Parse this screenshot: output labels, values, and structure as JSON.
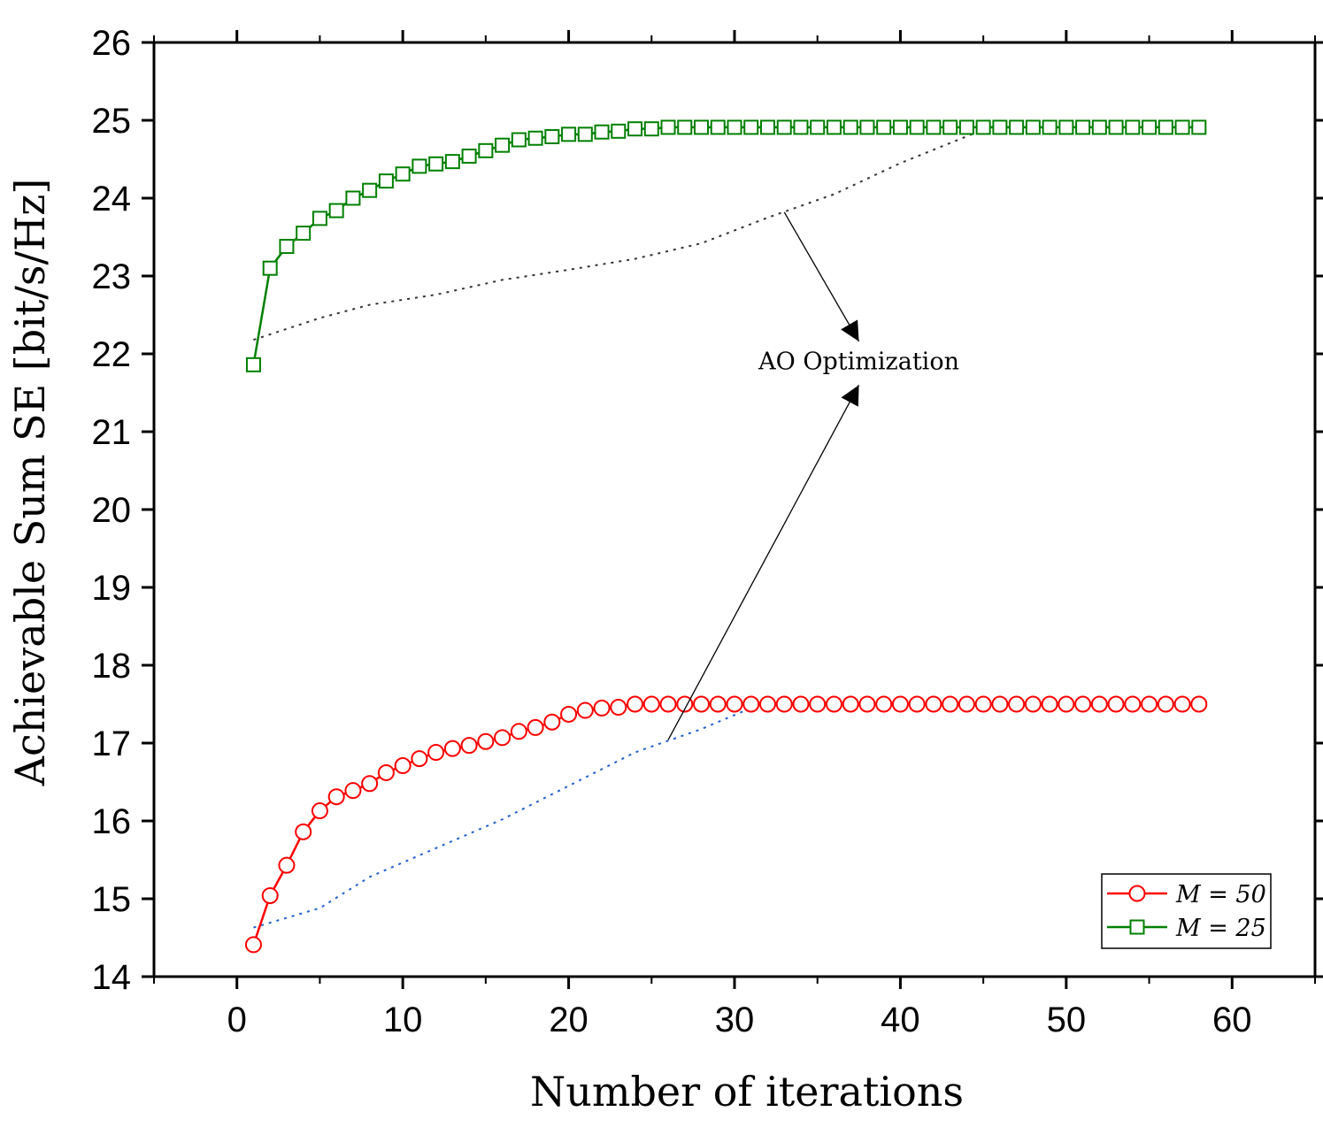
{
  "chart_data": {
    "type": "line",
    "title": "",
    "xlabel": "Number of iterations",
    "ylabel": "Achievable Sum SE [bit/s/Hz]",
    "xlim": [
      -5,
      65
    ],
    "ylim": [
      14,
      26
    ],
    "xticks": [
      0,
      10,
      20,
      30,
      40,
      50,
      60
    ],
    "yticks": [
      14,
      15,
      16,
      17,
      18,
      19,
      20,
      21,
      22,
      23,
      24,
      25,
      26
    ],
    "legend_position": "bottom-right",
    "series": [
      {
        "name": "M = 50",
        "label": "M = 50",
        "color": "#ff0000",
        "marker": "circle",
        "x": [
          1,
          2,
          3,
          4,
          5,
          6,
          7,
          8,
          9,
          10,
          11,
          12,
          13,
          14,
          15,
          16,
          17,
          18,
          19,
          20,
          21,
          22,
          23,
          24,
          25,
          26,
          27,
          28,
          29,
          30,
          31,
          32,
          33,
          34,
          35,
          36,
          37,
          38,
          39,
          40,
          41,
          42,
          43,
          44,
          45,
          46,
          47,
          48,
          49,
          50,
          51,
          52,
          53,
          54,
          55,
          56,
          57,
          58
        ],
        "values": [
          14.41,
          15.04,
          15.43,
          15.86,
          16.13,
          16.31,
          16.39,
          16.48,
          16.62,
          16.71,
          16.8,
          16.88,
          16.93,
          16.97,
          17.02,
          17.07,
          17.15,
          17.2,
          17.27,
          17.37,
          17.42,
          17.45,
          17.46,
          17.5,
          17.5,
          17.5,
          17.5,
          17.5,
          17.5,
          17.5,
          17.5,
          17.5,
          17.5,
          17.5,
          17.5,
          17.5,
          17.5,
          17.5,
          17.5,
          17.5,
          17.5,
          17.5,
          17.5,
          17.5,
          17.5,
          17.5,
          17.5,
          17.5,
          17.5,
          17.5,
          17.5,
          17.5,
          17.5,
          17.5,
          17.5,
          17.5,
          17.5,
          17.5
        ]
      },
      {
        "name": "M = 25",
        "label": "M = 25",
        "color": "#008000",
        "marker": "square",
        "x": [
          1,
          2,
          3,
          4,
          5,
          6,
          7,
          8,
          9,
          10,
          11,
          12,
          13,
          14,
          15,
          16,
          17,
          18,
          19,
          20,
          21,
          22,
          23,
          24,
          25,
          26,
          27,
          28,
          29,
          30,
          31,
          32,
          33,
          34,
          35,
          36,
          37,
          38,
          39,
          40,
          41,
          42,
          43,
          44,
          45,
          46,
          47,
          48,
          49,
          50,
          51,
          52,
          53,
          54,
          55,
          56,
          57,
          58
        ],
        "values": [
          21.86,
          23.1,
          23.38,
          23.55,
          23.74,
          23.84,
          24.0,
          24.1,
          24.22,
          24.31,
          24.41,
          24.44,
          24.47,
          24.54,
          24.61,
          24.68,
          24.75,
          24.77,
          24.79,
          24.82,
          24.82,
          24.85,
          24.86,
          24.89,
          24.89,
          24.91,
          24.91,
          24.91,
          24.91,
          24.91,
          24.91,
          24.91,
          24.91,
          24.91,
          24.91,
          24.91,
          24.91,
          24.91,
          24.91,
          24.91,
          24.91,
          24.91,
          24.91,
          24.91,
          24.91,
          24.91,
          24.91,
          24.91,
          24.91,
          24.91,
          24.91,
          24.91,
          24.91,
          24.91,
          24.91,
          24.91,
          24.91,
          24.91
        ]
      }
    ],
    "guide_lines": [
      {
        "name": "upper-trend",
        "color": "#333333",
        "x": [
          1,
          3,
          5,
          8,
          12,
          16,
          20,
          24,
          28,
          32,
          36,
          40,
          45
        ],
        "values": [
          22.18,
          22.32,
          22.46,
          22.63,
          22.76,
          22.95,
          23.08,
          23.22,
          23.42,
          23.75,
          24.05,
          24.45,
          24.88
        ]
      },
      {
        "name": "lower-trend",
        "color": "#1f5fcf",
        "x": [
          1,
          5,
          8,
          12,
          16,
          20,
          24,
          28,
          31
        ],
        "values": [
          14.63,
          14.88,
          15.28,
          15.65,
          16.02,
          16.45,
          16.88,
          17.18,
          17.45
        ]
      }
    ],
    "annotations": [
      {
        "text": "AO Optimization",
        "x": 37.5,
        "y": 21.96
      }
    ],
    "arrows": [
      {
        "from_x": 33,
        "from_y": 23.82,
        "to_x": 37.5,
        "to_y": 22.16
      },
      {
        "from_x": 26,
        "from_y": 17.04,
        "to_x": 37.5,
        "to_y": 21.6
      }
    ]
  }
}
